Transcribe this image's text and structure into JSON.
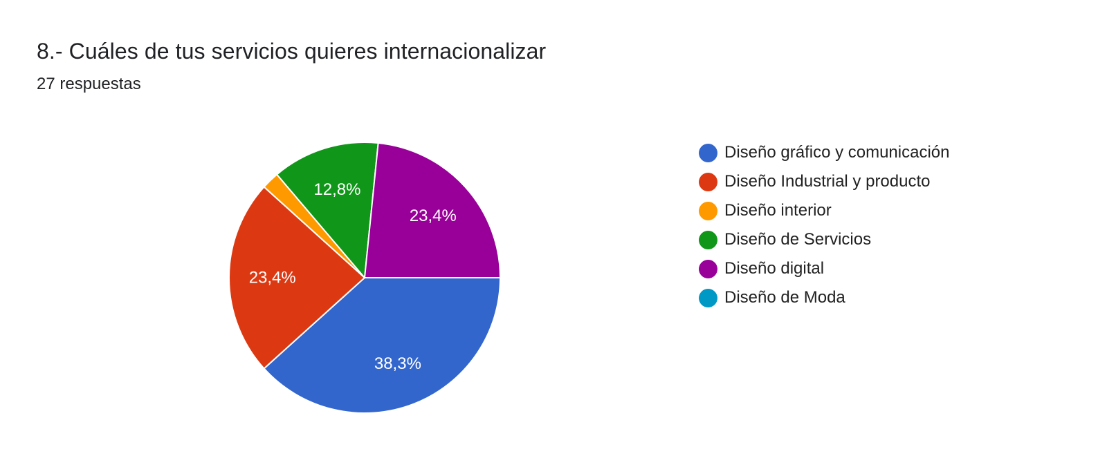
{
  "question": {
    "title": "8.- Cuáles de tus servicios quieres internacionalizar",
    "responses": "27 respuestas"
  },
  "chart_data": {
    "type": "pie",
    "categories": [
      "Diseño gráfico y comunicación",
      "Diseño Industrial y producto",
      "Diseño interior",
      "Diseño de Servicios",
      "Diseño digital",
      "Diseño de Moda"
    ],
    "values": [
      38.3,
      23.4,
      2.1,
      12.8,
      23.4,
      0
    ],
    "labels": [
      "38,3%",
      "23,4%",
      "",
      "12,8%",
      "23,4%",
      ""
    ],
    "colors": [
      "#3366cc",
      "#dc3912",
      "#ff9900",
      "#109618",
      "#990099",
      "#0099c6"
    ],
    "legend_position": "right"
  }
}
